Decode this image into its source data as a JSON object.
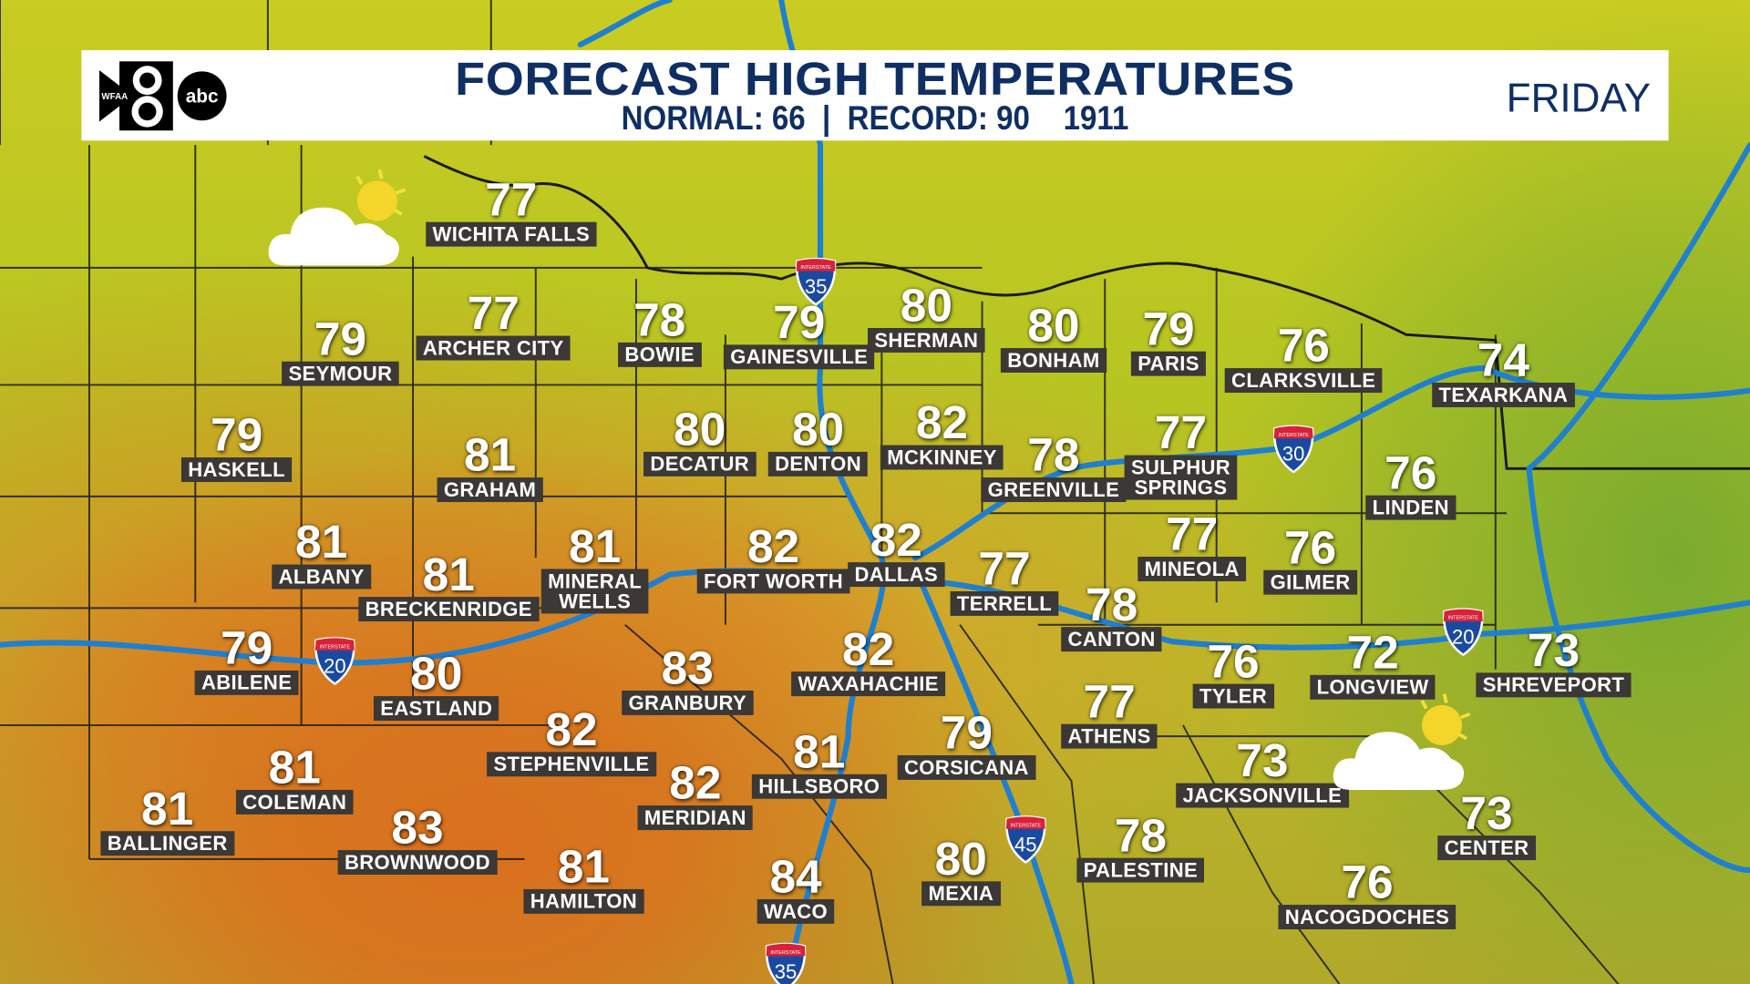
{
  "header": {
    "title": "FORECAST HIGH TEMPERATURES",
    "subtitle": "NORMAL: 66  |  RECORD: 90    1911",
    "day": "FRIDAY",
    "logo_text": "WFAA 8 abc"
  },
  "colors": {
    "title": "#0f2f63",
    "label_bg": "#3b3835",
    "river": "#1f7fd0",
    "warm": "#d9701e",
    "cool": "#b6c522"
  },
  "cities": [
    {
      "name": "WICHITA FALLS",
      "temp": "77"
    },
    {
      "name": "SEYMOUR",
      "temp": "79"
    },
    {
      "name": "ARCHER CITY",
      "temp": "77"
    },
    {
      "name": "BOWIE",
      "temp": "78"
    },
    {
      "name": "GAINESVILLE",
      "temp": "79"
    },
    {
      "name": "SHERMAN",
      "temp": "80"
    },
    {
      "name": "BONHAM",
      "temp": "80"
    },
    {
      "name": "PARIS",
      "temp": "79"
    },
    {
      "name": "CLARKSVILLE",
      "temp": "76"
    },
    {
      "name": "TEXARKANA",
      "temp": "74"
    },
    {
      "name": "HASKELL",
      "temp": "79"
    },
    {
      "name": "GRAHAM",
      "temp": "81"
    },
    {
      "name": "DECATUR",
      "temp": "80"
    },
    {
      "name": "DENTON",
      "temp": "80"
    },
    {
      "name": "MCKINNEY",
      "temp": "82"
    },
    {
      "name": "GREENVILLE",
      "temp": "78"
    },
    {
      "name": "SULPHUR\nSPRINGS",
      "temp": "77"
    },
    {
      "name": "LINDEN",
      "temp": "76"
    },
    {
      "name": "ALBANY",
      "temp": "81"
    },
    {
      "name": "BRECKENRIDGE",
      "temp": "81"
    },
    {
      "name": "MINERAL\nWELLS",
      "temp": "81"
    },
    {
      "name": "FORT WORTH",
      "temp": "82"
    },
    {
      "name": "DALLAS",
      "temp": "82"
    },
    {
      "name": "TERRELL",
      "temp": "77"
    },
    {
      "name": "MINEOLA",
      "temp": "77"
    },
    {
      "name": "GILMER",
      "temp": "76"
    },
    {
      "name": "CANTON",
      "temp": "78"
    },
    {
      "name": "ABILENE",
      "temp": "79"
    },
    {
      "name": "EASTLAND",
      "temp": "80"
    },
    {
      "name": "GRANBURY",
      "temp": "83"
    },
    {
      "name": "WAXAHACHIE",
      "temp": "82"
    },
    {
      "name": "TYLER",
      "temp": "76"
    },
    {
      "name": "LONGVIEW",
      "temp": "72"
    },
    {
      "name": "SHREVEPORT",
      "temp": "73"
    },
    {
      "name": "STEPHENVILLE",
      "temp": "82"
    },
    {
      "name": "ATHENS",
      "temp": "77"
    },
    {
      "name": "CORSICANA",
      "temp": "79"
    },
    {
      "name": "HILLSBORO",
      "temp": "81"
    },
    {
      "name": "COLEMAN",
      "temp": "81"
    },
    {
      "name": "BALLINGER",
      "temp": "81"
    },
    {
      "name": "BROWNWOOD",
      "temp": "83"
    },
    {
      "name": "MERIDIAN",
      "temp": "82"
    },
    {
      "name": "JACKSONVILLE",
      "temp": "73"
    },
    {
      "name": "CENTER",
      "temp": "73"
    },
    {
      "name": "HAMILTON",
      "temp": "81"
    },
    {
      "name": "WACO",
      "temp": "84"
    },
    {
      "name": "MEXIA",
      "temp": "80"
    },
    {
      "name": "PALESTINE",
      "temp": "78"
    },
    {
      "name": "NACOGDOCHES",
      "temp": "76"
    }
  ],
  "interstates": [
    {
      "label": "INTERSTATE",
      "number": "35"
    },
    {
      "label": "INTERSTATE",
      "number": "30"
    },
    {
      "label": "INTERSTATE",
      "number": "20"
    },
    {
      "label": "INTERSTATE",
      "number": "20"
    },
    {
      "label": "INTERSTATE",
      "number": "45"
    },
    {
      "label": "INTERSTATE",
      "number": "35"
    }
  ],
  "weather_icons": [
    {
      "icon": "partly-cloudy-icon"
    },
    {
      "icon": "partly-cloudy-icon"
    }
  ]
}
